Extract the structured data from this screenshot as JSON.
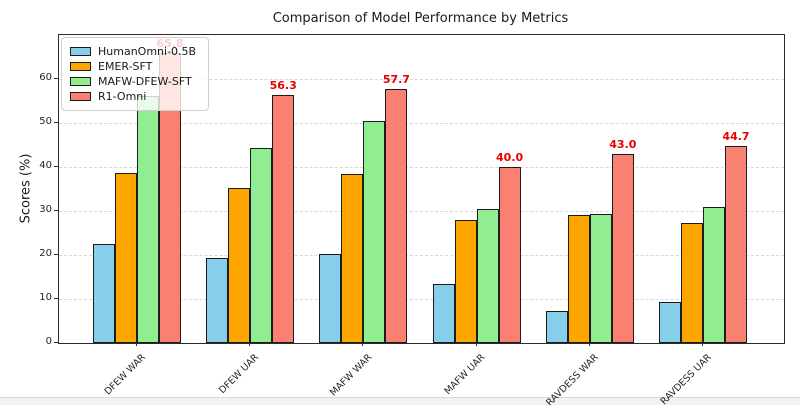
{
  "chart_data": {
    "type": "bar",
    "title": "Comparison of Model Performance by Metrics",
    "xlabel": "",
    "ylabel": "Scores (%)",
    "categories": [
      "DFEW WAR",
      "DFEW UAR",
      "MAFW WAR",
      "MAFW UAR",
      "RAVDESS WAR",
      "RAVDESS UAR"
    ],
    "series": [
      {
        "name": "HumanOmni-0.5B",
        "color": "#87CEEB",
        "values": [
          22.6,
          19.4,
          20.3,
          13.5,
          7.3,
          9.4
        ]
      },
      {
        "name": "EMER-SFT",
        "color": "#FFA500",
        "values": [
          38.7,
          35.3,
          38.4,
          28.0,
          29.0,
          27.2
        ]
      },
      {
        "name": "MAFW-DFEW-SFT",
        "color": "#90EE90",
        "values": [
          56.1,
          44.4,
          50.4,
          30.4,
          29.3,
          30.8
        ]
      },
      {
        "name": "R1-Omni",
        "color": "#FA8072",
        "values": [
          65.8,
          56.3,
          57.7,
          40.0,
          43.0,
          44.7
        ]
      }
    ],
    "annotations": {
      "on_series": "R1-Omni",
      "labels": [
        "65.8",
        "56.3",
        "57.7",
        "40.0",
        "43.0",
        "44.7"
      ],
      "color": "#e60000"
    },
    "yticks": [
      "0",
      "10",
      "20",
      "30",
      "40",
      "50",
      "60"
    ],
    "ylim": [
      0,
      70
    ],
    "grid": "horizontal-dashed",
    "legend_position": "upper-left",
    "bar_edge_color": "#1c1c1c"
  }
}
